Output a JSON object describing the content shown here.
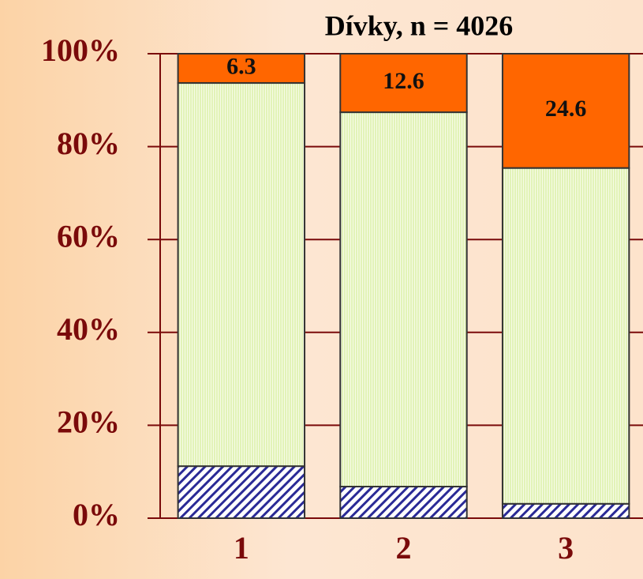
{
  "chart_data": {
    "type": "stacked_bar",
    "title": "Dívky, n = 4026",
    "categories": [
      "1",
      "2",
      "3"
    ],
    "series": [
      {
        "color": "#2a2a96",
        "pattern": "hatch",
        "values": [
          11.2,
          6.8,
          3.1
        ]
      },
      {
        "color": "#e2f3b8",
        "pattern": "stripes",
        "values": [
          82.5,
          80.6,
          72.3
        ]
      },
      {
        "color": "#ff6600",
        "pattern": "solid",
        "show_labels": true,
        "values": [
          6.3,
          12.6,
          24.6
        ]
      }
    ],
    "ylim": [
      0,
      100
    ],
    "yticks": [
      {
        "value": 0,
        "label": "0%"
      },
      {
        "value": 20,
        "label": "20%"
      },
      {
        "value": 40,
        "label": "40%"
      },
      {
        "value": 60,
        "label": "60%"
      },
      {
        "value": 80,
        "label": "80%"
      },
      {
        "value": 100,
        "label": "100%"
      }
    ],
    "grid": true
  }
}
